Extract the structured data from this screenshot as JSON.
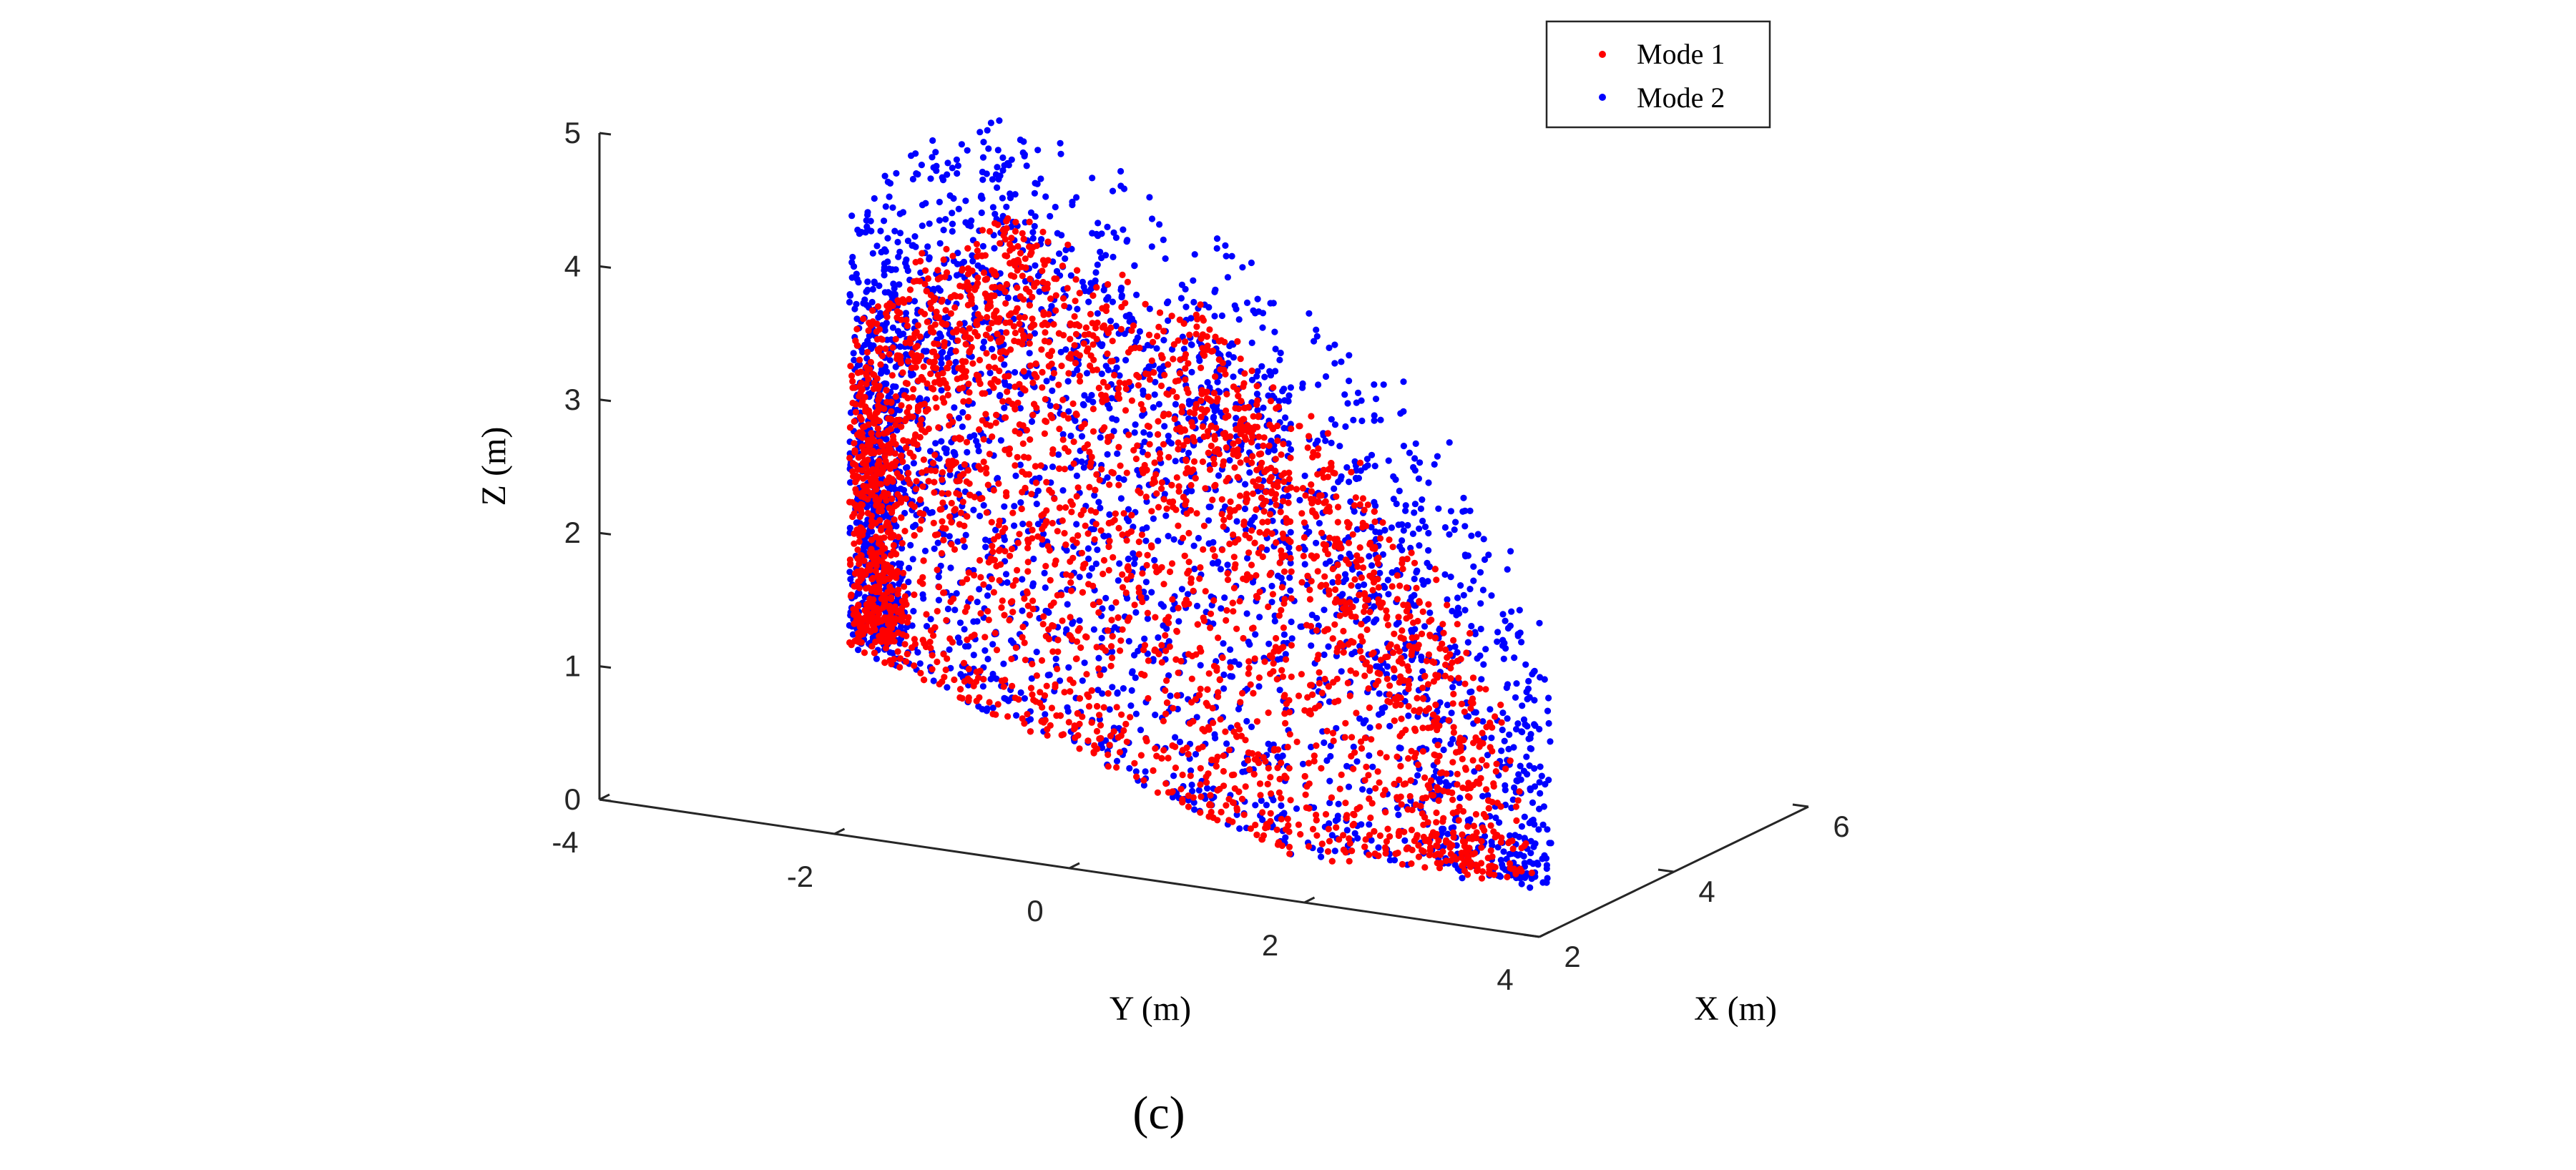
{
  "caption": "(c)",
  "chart_data": {
    "type": "scatter",
    "projection": "3d",
    "xlabel": "X (m)",
    "ylabel": "Y (m)",
    "zlabel": "Z (m)",
    "xlim": [
      2,
      6
    ],
    "ylim": [
      -4,
      4
    ],
    "zlim": [
      0,
      5
    ],
    "x_ticks": [
      "2",
      "4",
      "6"
    ],
    "y_ticks": [
      "-4",
      "-2",
      "0",
      "2",
      "4"
    ],
    "z_ticks": [
      "0",
      "1",
      "2",
      "3",
      "4",
      "5"
    ],
    "grid": false,
    "legend_position": "top-right",
    "series": [
      {
        "name": "Mode 1",
        "color": "#ff0000",
        "shape": "roughly hemispherical shell cloud of points",
        "center": [
          3.5,
          -0.5,
          0
        ],
        "radius_range": [
          3.4,
          4.3
        ],
        "z_range": [
          0.3,
          4.4
        ]
      },
      {
        "name": "Mode 2",
        "color": "#0000ff",
        "shape": "roughly hemispherical shell cloud of points",
        "center": [
          3.5,
          -0.5,
          0
        ],
        "radius_range": [
          3.4,
          5.0
        ],
        "z_range": [
          0.3,
          5.0
        ]
      }
    ]
  }
}
